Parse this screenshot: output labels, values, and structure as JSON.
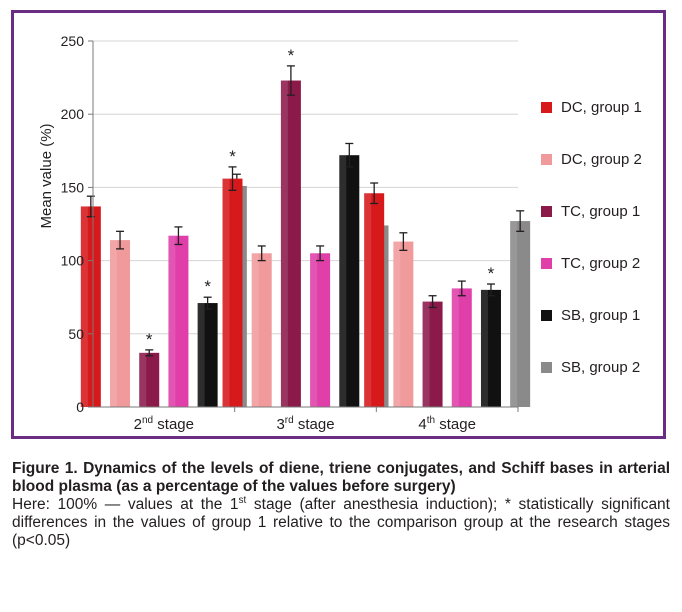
{
  "chart_data": {
    "type": "bar",
    "ylabel": "Mean value (%)",
    "xlabel": "",
    "ylim": [
      0,
      250
    ],
    "yticks": [
      0,
      50,
      100,
      150,
      200,
      250
    ],
    "grid": true,
    "legend_position": "right",
    "categories": [
      {
        "base": "2",
        "sup": "nd",
        "rest": " stage"
      },
      {
        "base": "3",
        "sup": "rd",
        "rest": " stage"
      },
      {
        "base": "4",
        "sup": "th",
        "rest": " stage"
      }
    ],
    "series": [
      {
        "name": "DC, group 1",
        "color": "#d7191c",
        "values": [
          137,
          156,
          146
        ],
        "errors": [
          7,
          8,
          7
        ]
      },
      {
        "name": "DC, group 2",
        "color": "#f19a9c",
        "values": [
          114,
          105,
          113
        ],
        "errors": [
          6,
          5,
          6
        ]
      },
      {
        "name": "TC, group 1",
        "color": "#8b1a4a",
        "values": [
          37,
          223,
          72
        ],
        "errors": [
          2,
          10,
          4
        ]
      },
      {
        "name": "TC, group 2",
        "color": "#e03ea8",
        "values": [
          117,
          105,
          81
        ],
        "errors": [
          6,
          5,
          5
        ]
      },
      {
        "name": "SB, group 1",
        "color": "#111111",
        "values": [
          71,
          172,
          80
        ],
        "errors": [
          4,
          8,
          4
        ]
      },
      {
        "name": "SB, group 2",
        "color": "#8a8a8a",
        "values": [
          151,
          124,
          127
        ],
        "errors": [
          8,
          6,
          7
        ]
      }
    ],
    "significance_marker": "*",
    "significant_bars": [
      {
        "series": 2,
        "category": 0
      },
      {
        "series": 4,
        "category": 0
      },
      {
        "series": 0,
        "category": 1
      },
      {
        "series": 2,
        "category": 1
      },
      {
        "series": 4,
        "category": 2
      }
    ]
  },
  "caption": {
    "title": "Figure 1. Dynamics of the levels of diene, triene conjugates, and Schiff bases in arterial blood plasma (as a percentage of the values before surgery)",
    "note_before_sup": "Here: 100% — values at the 1",
    "note_sup": "st",
    "note_after_sup": " stage (after anesthesia induction); * statistically significant differences in the values of group 1 relative to the comparison group at the research stages (p<0.05)"
  }
}
